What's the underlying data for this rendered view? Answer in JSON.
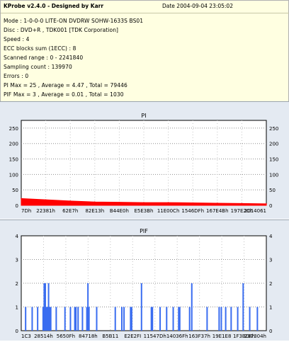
{
  "header": {
    "title": "KProbe v2.4.0 - Designed by Karr",
    "date": "Date  2004-09-04 23:05:02"
  },
  "info": {
    "lines": [
      "Mode : 1-0-0-0 LITE-ON DVDRW SOHW-1633S BS01",
      "Disc : DVD+R , TDK001 [TDK Corporation]",
      "Speed : 4",
      "ECC blocks sum (1ECC) : 8",
      "Scanned range : 0 - 2241840",
      "Sampling count : 139970",
      "Errors : 0",
      "PI Max = 25 , Average = 4.47 , Total = 79446",
      "PIF Max = 3 , Average = 0.01 , Total = 1030"
    ]
  },
  "chart_data": [
    {
      "type": "area",
      "title": "PI",
      "color": "#ff0000",
      "x_range": [
        0,
        2241840
      ],
      "ylim": [
        0,
        275
      ],
      "yticks": [
        0,
        50,
        100,
        150,
        200,
        250
      ],
      "xtick_labels": [
        "7Dh",
        "22381h",
        "62E7h",
        "82E13h",
        "B44E0h",
        "E5E3Bh",
        "11E00Ch",
        "1546DFh",
        "167E4Bh",
        "197E2Ch",
        "2014061"
      ],
      "series": [
        {
          "x": [
            0,
            224184,
            448368,
            672552,
            896736,
            1120920,
            1345104,
            1569288,
            1793472,
            2017656,
            2241840
          ],
          "values": [
            22,
            18,
            14,
            11,
            10,
            9,
            9,
            8,
            7,
            6,
            5
          ]
        }
      ]
    },
    {
      "type": "bar",
      "title": "PIF",
      "color": "#3a6df0",
      "x_range": [
        0,
        2241840
      ],
      "ylim": [
        0,
        4
      ],
      "yticks": [
        0,
        1,
        2,
        3,
        4
      ],
      "xtick_labels": [
        "1C3",
        "28514h",
        "5650Fh",
        "84718h",
        "B5B11",
        "E2E2FI",
        "11547Dh",
        "14036Fh",
        "163F37h",
        "19E1E8",
        "1F3B08h",
        "237304h"
      ],
      "series": [
        {
          "x": [
            40000,
            100000,
            150000,
            200000,
            210000,
            220000,
            230000,
            240000,
            250000,
            260000,
            270000,
            320000,
            400000,
            450000,
            490000,
            500000,
            520000,
            560000,
            600000,
            610000,
            620000,
            690000,
            860000,
            920000,
            940000,
            1000000,
            1010000,
            1100000,
            1190000,
            1200000,
            1270000,
            1330000,
            1390000,
            1440000,
            1450000,
            1540000,
            1560000,
            1700000,
            1810000,
            1830000,
            1870000,
            1920000,
            1980000,
            2030000,
            2090000,
            2160000
          ],
          "values": [
            1,
            1,
            1,
            1,
            2,
            2,
            1,
            1,
            2,
            1,
            1,
            1,
            1,
            1,
            1,
            1,
            1,
            1,
            1,
            2,
            1,
            1,
            1,
            1,
            1,
            1,
            1,
            2,
            1,
            1,
            1,
            1,
            1,
            1,
            1,
            1,
            2,
            1,
            1,
            1,
            1,
            1,
            1,
            2,
            1,
            1
          ]
        }
      ]
    }
  ]
}
